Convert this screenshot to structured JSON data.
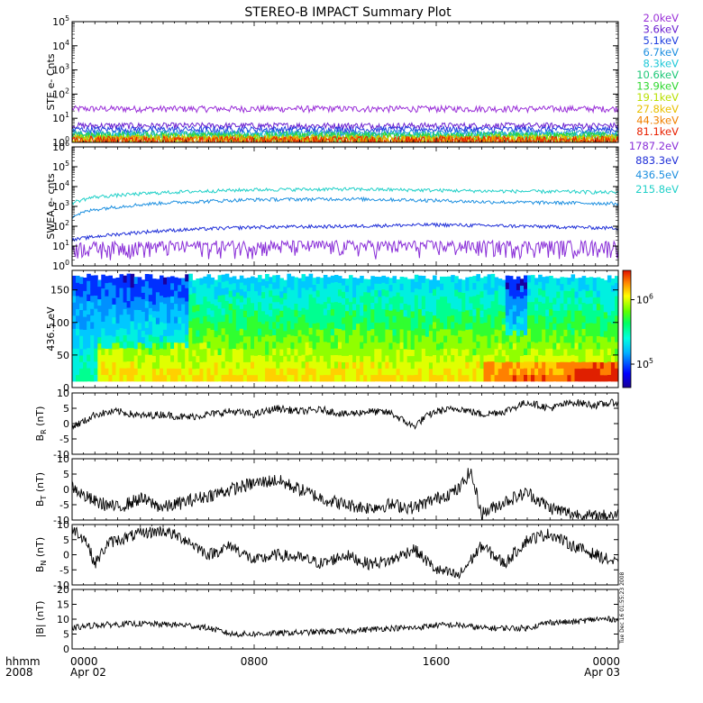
{
  "chart_data": {
    "title": "STEREO-B IMPACT Summary Plot",
    "time_axis": {
      "row_label_1": "hhmm",
      "row_label_2": "2008",
      "ticks": [
        {
          "time": "0000",
          "date": "Apr 02",
          "hour": 0
        },
        {
          "time": "0800",
          "date": "",
          "hour": 8
        },
        {
          "time": "1600",
          "date": "",
          "hour": 16
        },
        {
          "time": "0000",
          "date": "Apr 03",
          "hour": 24
        }
      ],
      "range_hours": [
        0,
        24
      ]
    },
    "timestamp_note": "Tue Dec 16 01:55:23 2008",
    "panels": [
      {
        "id": "ste",
        "type": "line",
        "ylabel": "STE e- Cnts",
        "yscale": "log",
        "ylim": [
          1,
          100000
        ],
        "yticks": [
          "10^0",
          "10^1",
          "10^2",
          "10^3",
          "10^4",
          "10^5"
        ],
        "series": [
          {
            "name": "2.0keV",
            "color": "#9a2fd8",
            "approx_level": 25
          },
          {
            "name": "3.6keV",
            "color": "#6a1fd0",
            "approx_level": 5
          },
          {
            "name": "5.1keV",
            "color": "#1f3fe0",
            "approx_level": 3.5
          },
          {
            "name": "6.7keV",
            "color": "#1e8fe0",
            "approx_level": 2.5
          },
          {
            "name": "8.3keV",
            "color": "#1ec8d8",
            "approx_level": 2
          },
          {
            "name": "10.6keV",
            "color": "#1ec878",
            "approx_level": 1.6
          },
          {
            "name": "13.9keV",
            "color": "#2fd82f",
            "approx_level": 1.4
          },
          {
            "name": "19.1keV",
            "color": "#b8e000",
            "approx_level": 1.2
          },
          {
            "name": "27.8keV",
            "color": "#e8c000",
            "approx_level": 1.1
          },
          {
            "name": "44.3keV",
            "color": "#f08000",
            "approx_level": 1.05
          },
          {
            "name": "81.1keV",
            "color": "#e82000",
            "approx_level": 1.0
          }
        ]
      },
      {
        "id": "swea",
        "type": "line",
        "ylabel": "SWEA e- cnts",
        "yscale": "log",
        "ylim": [
          1,
          1000000
        ],
        "yticks": [
          "10^0",
          "10^1",
          "10^2",
          "10^3",
          "10^4",
          "10^5",
          "10^6"
        ],
        "series": [
          {
            "name": "1787.2eV",
            "color": "#8a2fd8",
            "profile": [
              [
                0,
                6
              ],
              [
                6,
                7
              ],
              [
                12,
                7
              ],
              [
                18,
                7
              ],
              [
                24,
                7
              ]
            ]
          },
          {
            "name": "883.3eV",
            "color": "#1f2fd8",
            "profile": [
              [
                0,
                20
              ],
              [
                1,
                30
              ],
              [
                4,
                60
              ],
              [
                8,
                90
              ],
              [
                12,
                100
              ],
              [
                16,
                120
              ],
              [
                18,
                110
              ],
              [
                22,
                90
              ],
              [
                24,
                80
              ]
            ]
          },
          {
            "name": "436.5eV",
            "color": "#1e90e0",
            "profile": [
              [
                0,
                300
              ],
              [
                1,
                700
              ],
              [
                4,
                1500
              ],
              [
                8,
                2200
              ],
              [
                12,
                2400
              ],
              [
                16,
                2000
              ],
              [
                18,
                1700
              ],
              [
                22,
                1500
              ],
              [
                24,
                1400
              ]
            ]
          },
          {
            "name": "215.8eV",
            "color": "#20d0c8",
            "profile": [
              [
                0,
                1500
              ],
              [
                1,
                3000
              ],
              [
                4,
                5000
              ],
              [
                8,
                7000
              ],
              [
                12,
                7500
              ],
              [
                16,
                6500
              ],
              [
                18,
                6000
              ],
              [
                22,
                5500
              ],
              [
                24,
                5000
              ]
            ]
          }
        ]
      },
      {
        "id": "spectrogram",
        "type": "heatmap",
        "ylabel": "436.5 eV",
        "ylim": [
          0,
          180
        ],
        "yticks": [
          0,
          50,
          100,
          150
        ],
        "colorbar": {
          "scale": "log",
          "ticks": [
            "10^5",
            "10^6"
          ]
        }
      },
      {
        "id": "br",
        "type": "line",
        "ylabel_main": "B",
        "ylabel_sub": "R",
        "ylabel_unit": " (nT)",
        "ylim": [
          -10,
          10
        ],
        "yticks": [
          -10,
          -5,
          0,
          5,
          10
        ],
        "profile": [
          [
            0,
            -1
          ],
          [
            0.6,
            1
          ],
          [
            1,
            3
          ],
          [
            2,
            4
          ],
          [
            3,
            2.5
          ],
          [
            4,
            3
          ],
          [
            5,
            2
          ],
          [
            6,
            3
          ],
          [
            7,
            4
          ],
          [
            8,
            3
          ],
          [
            9,
            5
          ],
          [
            10,
            4
          ],
          [
            11,
            4.5
          ],
          [
            12,
            3
          ],
          [
            13,
            4
          ],
          [
            14,
            3.5
          ],
          [
            15,
            -1
          ],
          [
            15.5,
            2
          ],
          [
            16,
            4
          ],
          [
            17,
            5
          ],
          [
            18,
            3
          ],
          [
            19,
            4
          ],
          [
            20,
            7
          ],
          [
            21,
            5
          ],
          [
            22,
            7
          ],
          [
            23,
            6
          ],
          [
            24,
            7
          ]
        ],
        "noise": 1.2
      },
      {
        "id": "bt",
        "type": "line",
        "ylabel_main": "B",
        "ylabel_sub": "T",
        "ylabel_unit": " (nT)",
        "ylim": [
          -10,
          10
        ],
        "yticks": [
          -10,
          -5,
          0,
          5,
          10
        ],
        "profile": [
          [
            0,
            1
          ],
          [
            0.5,
            -2
          ],
          [
            1,
            -4
          ],
          [
            2,
            -6
          ],
          [
            3,
            -3
          ],
          [
            4,
            -6
          ],
          [
            5,
            -4
          ],
          [
            6,
            -2
          ],
          [
            7,
            0
          ],
          [
            8,
            2
          ],
          [
            9,
            3
          ],
          [
            10,
            0
          ],
          [
            11,
            -3
          ],
          [
            12,
            -5
          ],
          [
            13,
            -6
          ],
          [
            14,
            -5
          ],
          [
            15,
            -6
          ],
          [
            16,
            -3
          ],
          [
            17,
            0
          ],
          [
            17.5,
            6
          ],
          [
            18,
            -8
          ],
          [
            19,
            -4
          ],
          [
            20,
            -1
          ],
          [
            21,
            -6
          ],
          [
            22,
            -8
          ],
          [
            23,
            -9
          ],
          [
            24,
            -8
          ]
        ],
        "noise": 2.2
      },
      {
        "id": "bn",
        "type": "line",
        "ylabel_main": "B",
        "ylabel_sub": "N",
        "ylabel_unit": " (nT)",
        "ylim": [
          -10,
          10
        ],
        "yticks": [
          -10,
          -5,
          0,
          5,
          10
        ],
        "profile": [
          [
            0,
            9
          ],
          [
            0.6,
            5
          ],
          [
            1,
            -3
          ],
          [
            1.6,
            4
          ],
          [
            3,
            7
          ],
          [
            4,
            8
          ],
          [
            5,
            5
          ],
          [
            6,
            0
          ],
          [
            7,
            3
          ],
          [
            8,
            -2
          ],
          [
            9,
            0
          ],
          [
            10,
            -1
          ],
          [
            11,
            -3
          ],
          [
            12,
            0
          ],
          [
            13,
            -3
          ],
          [
            14,
            -2
          ],
          [
            15,
            2
          ],
          [
            16,
            -5
          ],
          [
            17,
            -7
          ],
          [
            18,
            3
          ],
          [
            19,
            -3
          ],
          [
            20,
            5
          ],
          [
            21,
            7
          ],
          [
            22,
            3
          ],
          [
            23,
            0
          ],
          [
            24,
            -3
          ]
        ],
        "noise": 2.0
      },
      {
        "id": "bmag",
        "type": "line",
        "ylabel_main": "|B|",
        "ylabel_sub": "",
        "ylabel_unit": " (nT)",
        "ylim": [
          0,
          20
        ],
        "yticks": [
          0,
          5,
          10,
          15,
          20
        ],
        "profile": [
          [
            0,
            7
          ],
          [
            1,
            8
          ],
          [
            3,
            8.5
          ],
          [
            5,
            8
          ],
          [
            6,
            7
          ],
          [
            7,
            5
          ],
          [
            8,
            5
          ],
          [
            10,
            5.5
          ],
          [
            12,
            6
          ],
          [
            14,
            7
          ],
          [
            15,
            7
          ],
          [
            16,
            8
          ],
          [
            17,
            8
          ],
          [
            18,
            7
          ],
          [
            20,
            7
          ],
          [
            21,
            9
          ],
          [
            22,
            9
          ],
          [
            23,
            10
          ],
          [
            24,
            10
          ]
        ],
        "noise": 1.0
      }
    ]
  }
}
